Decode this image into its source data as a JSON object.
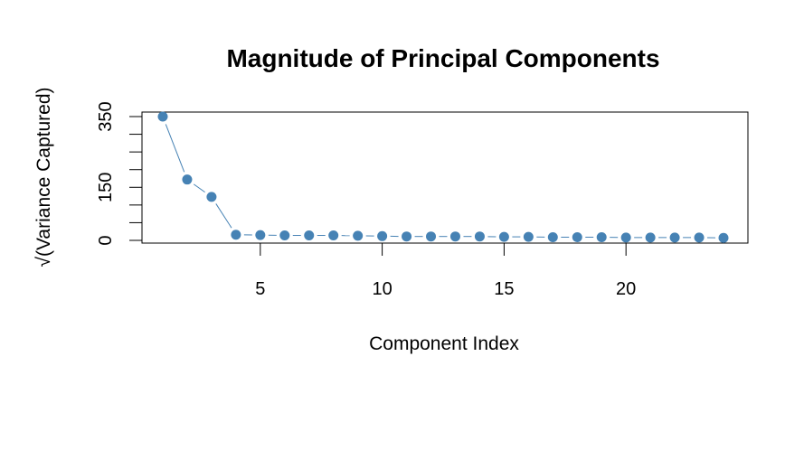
{
  "chart_data": {
    "type": "scatter",
    "title": "Magnitude of Principal Components",
    "xlabel": "Component Index",
    "ylabel": "√(Variance Captured)",
    "xlim": [
      1,
      24
    ],
    "ylim": [
      0,
      350
    ],
    "x_ticks": [
      5,
      10,
      15,
      20
    ],
    "y_ticks": [
      0,
      150,
      350
    ],
    "y_minor_ticks": [
      50,
      100,
      200,
      250,
      300
    ],
    "grid": false,
    "marker_color": "#4682B4",
    "series": [
      {
        "x": [
          1,
          2,
          3,
          4,
          5,
          6,
          7,
          8,
          9,
          10,
          11,
          12,
          13,
          14,
          15,
          16,
          17,
          18,
          19,
          20,
          21,
          22,
          23,
          24
        ],
        "values": [
          350,
          172,
          123,
          16,
          15,
          14,
          14,
          14,
          13,
          12,
          11,
          11,
          11,
          11,
          10,
          10,
          9,
          9,
          9,
          8,
          8,
          8,
          8,
          7
        ]
      }
    ]
  }
}
